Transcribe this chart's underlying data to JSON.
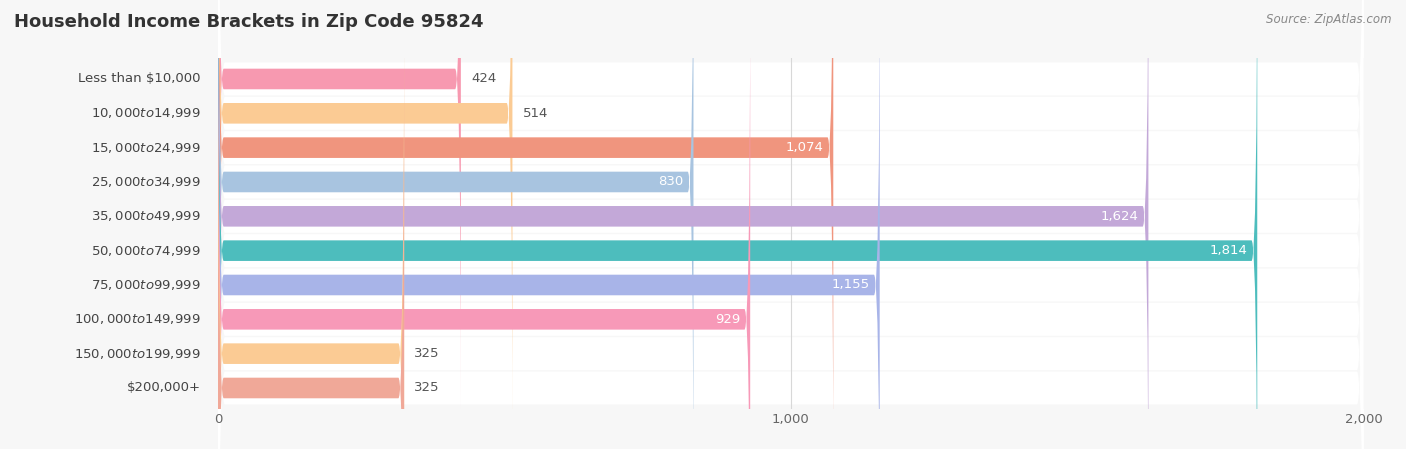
{
  "title": "Household Income Brackets in Zip Code 95824",
  "source": "Source: ZipAtlas.com",
  "categories": [
    "Less than $10,000",
    "$10,000 to $14,999",
    "$15,000 to $24,999",
    "$25,000 to $34,999",
    "$35,000 to $49,999",
    "$50,000 to $74,999",
    "$75,000 to $99,999",
    "$100,000 to $149,999",
    "$150,000 to $199,999",
    "$200,000+"
  ],
  "values": [
    424,
    514,
    1074,
    830,
    1624,
    1814,
    1155,
    929,
    325,
    325
  ],
  "bar_colors": [
    "#F799B0",
    "#FBCB94",
    "#F0957E",
    "#A8C4E0",
    "#C3A8D8",
    "#4DBDBD",
    "#A8B4E8",
    "#F799B8",
    "#FBCB94",
    "#F0A898"
  ],
  "xlim": [
    0,
    2000
  ],
  "xticks": [
    0,
    1000,
    2000
  ],
  "background_color": "#f7f7f7",
  "row_bg_color": "#ffffff",
  "title_fontsize": 13,
  "label_fontsize": 9.5,
  "value_fontsize": 9.5,
  "bar_height": 0.6,
  "value_inside_threshold": 600
}
